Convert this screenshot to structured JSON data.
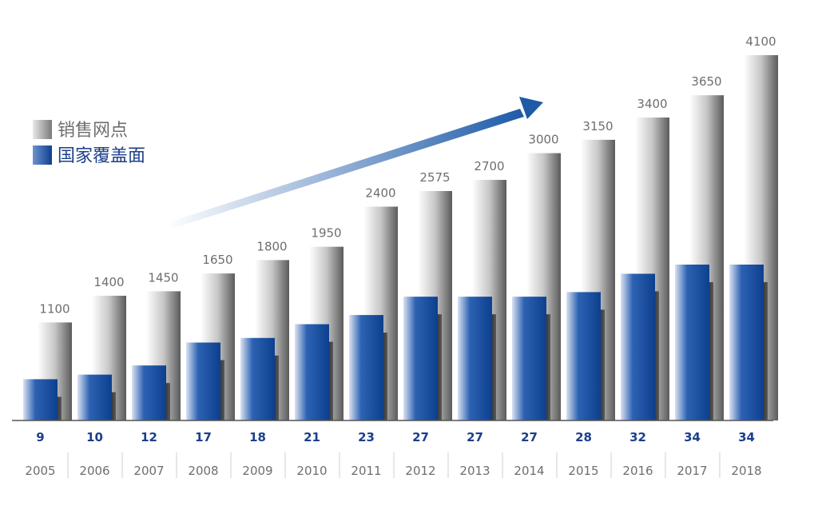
{
  "chart_data": {
    "type": "bar",
    "categories": [
      "2005",
      "2006",
      "2007",
      "2008",
      "2009",
      "2010",
      "2011",
      "2012",
      "2013",
      "2014",
      "2015",
      "2016",
      "2017",
      "2018"
    ],
    "series": [
      {
        "name": "销售网点",
        "values": [
          1100,
          1400,
          1450,
          1650,
          1800,
          1950,
          2400,
          2575,
          2700,
          3000,
          3150,
          3400,
          3650,
          4100
        ]
      },
      {
        "name": "国家覆盖面",
        "values": [
          9,
          10,
          12,
          17,
          18,
          21,
          23,
          27,
          27,
          27,
          28,
          32,
          34,
          34
        ]
      }
    ],
    "legend": [
      {
        "label": "销售网点",
        "color": "#9a9a9a"
      },
      {
        "label": "国家覆盖面",
        "color": "#0d4a9b"
      }
    ],
    "legend_position": "top-left",
    "trend_arrow": true,
    "grid": false,
    "colors": {
      "gray_series": "#9a9a9a",
      "blue_series": "#0d4a9b",
      "count_text": "#1b3f8b",
      "value_text": "#6e6e6e",
      "legend_gray_text": "#6e6e6e",
      "legend_blue_text": "#1b3f8b"
    }
  }
}
